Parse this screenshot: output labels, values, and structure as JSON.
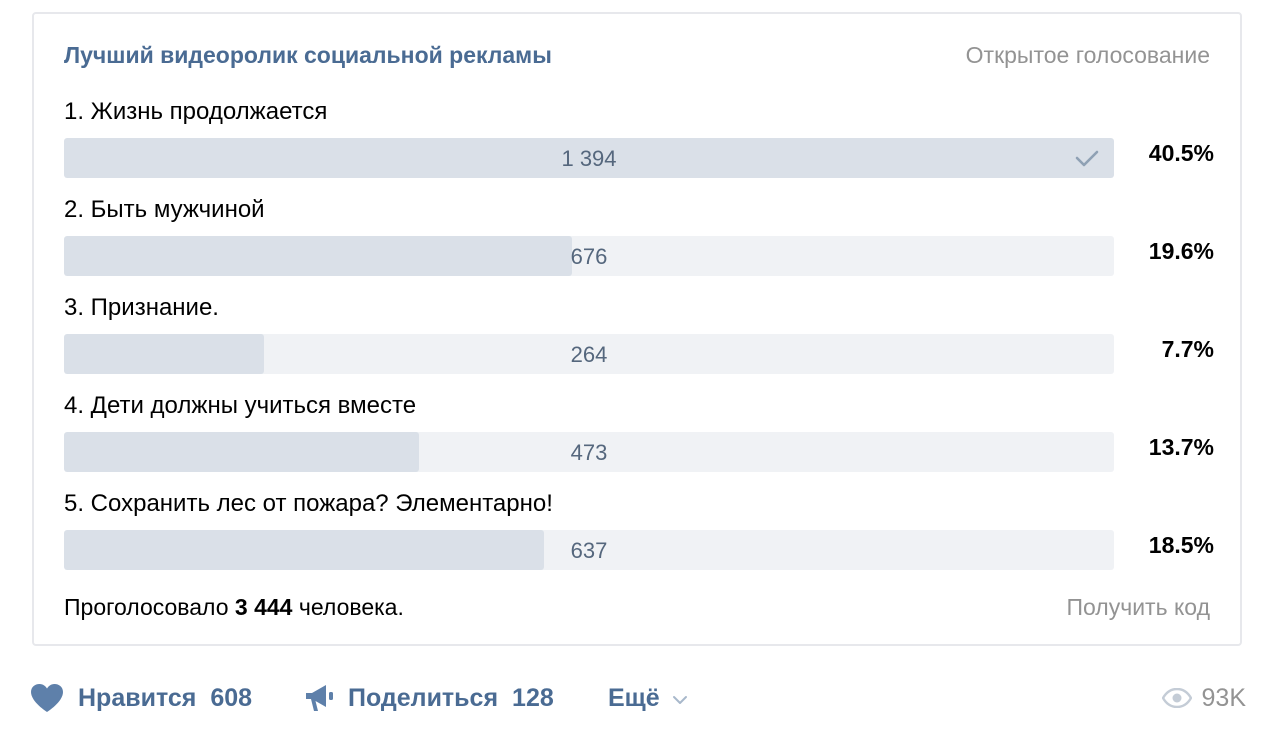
{
  "poll": {
    "title": "Лучший видеоролик социальной рекламы",
    "type": "Открытое голосование",
    "options": [
      {
        "label": "1. Жизнь продолжается",
        "count": "1 394",
        "percent": "40.5%",
        "fraction": 0.405,
        "voted": true
      },
      {
        "label": "2. Быть мужчиной",
        "count": "676",
        "percent": "19.6%",
        "fraction": 0.196,
        "voted": false
      },
      {
        "label": "3. Признание.",
        "count": "264",
        "percent": "7.7%",
        "fraction": 0.077,
        "voted": false
      },
      {
        "label": "4. Дети должны учиться вместе",
        "count": "473",
        "percent": "13.7%",
        "fraction": 0.137,
        "voted": false
      },
      {
        "label": "5. Сохранить лес от пожара? Элементарно!",
        "count": "637",
        "percent": "18.5%",
        "fraction": 0.185,
        "voted": false
      }
    ],
    "total_prefix": "Проголосовало",
    "total_count": "3 444",
    "total_suffix": "человека.",
    "get_code": "Получить код"
  },
  "actions": {
    "like_label": "Нравится",
    "like_count": "608",
    "share_label": "Поделиться",
    "share_count": "128",
    "more_label": "Ещё",
    "views": "93K"
  },
  "colors": {
    "accent": "#4a6b93",
    "bar_track": "#f0f2f5",
    "bar_fill": "#dae0e8",
    "muted": "#939393",
    "icon": "#5e80aa"
  },
  "icons": {
    "voted": "check-icon",
    "like": "heart-icon",
    "share": "megaphone-icon",
    "more": "chevron-down-icon",
    "views": "eye-icon"
  }
}
